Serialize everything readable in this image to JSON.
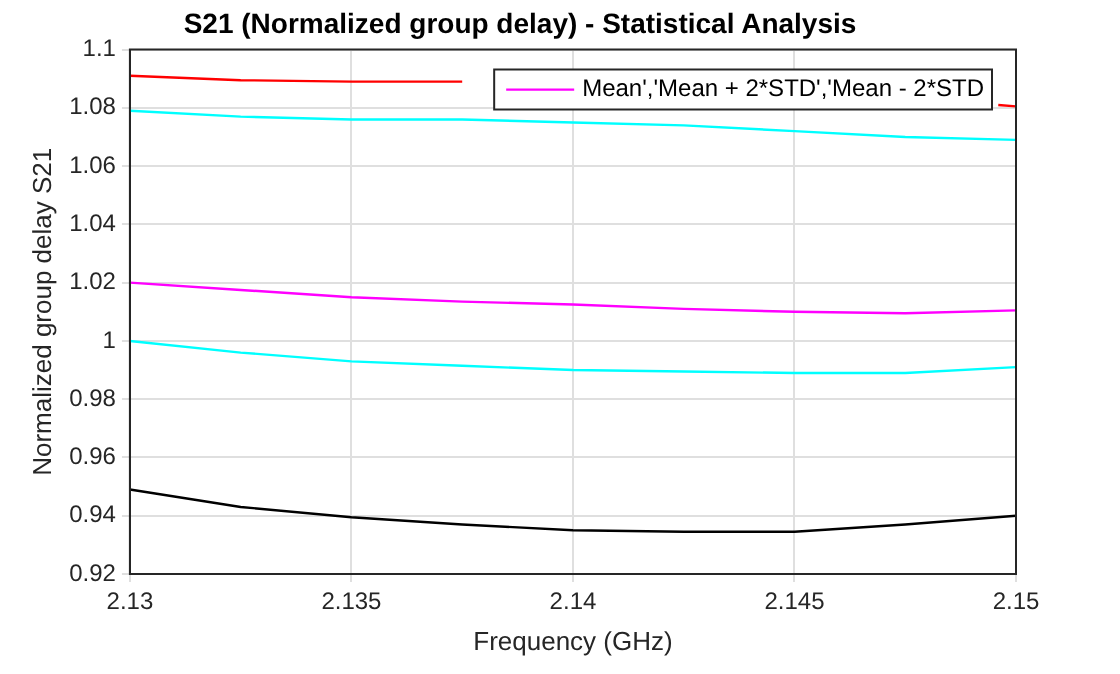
{
  "chart_data": {
    "type": "line",
    "title": "S21 (Normalized group delay) - Statistical Analysis",
    "xlabel": "Frequency (GHz)",
    "ylabel": "Normalized group delay S21",
    "x": [
      2.13,
      2.1325,
      2.135,
      2.1375,
      2.14,
      2.1425,
      2.145,
      2.1475,
      2.15
    ],
    "series": [
      {
        "color": "#ff0000",
        "x": [
          2.13,
          2.1325,
          2.135,
          2.1375,
          2.142,
          2.1496,
          2.15
        ],
        "values": [
          1.091,
          1.0895,
          1.089,
          1.089,
          null,
          1.081,
          1.0805
        ]
      },
      {
        "color": "#00ffff",
        "values": [
          1.079,
          1.077,
          1.076,
          1.076,
          1.075,
          1.074,
          1.072,
          1.07,
          1.069
        ]
      },
      {
        "name": "Mean','Mean + 2*STD','Mean - 2*STD",
        "color": "#ff00ff",
        "values": [
          1.02,
          1.0175,
          1.015,
          1.0135,
          1.0125,
          1.011,
          1.01,
          1.0095,
          1.0105
        ]
      },
      {
        "color": "#00ffff",
        "values": [
          1.0,
          0.996,
          0.993,
          0.9915,
          0.99,
          0.9895,
          0.989,
          0.989,
          0.991
        ]
      },
      {
        "color": "#000000",
        "values": [
          0.949,
          0.943,
          0.9395,
          0.937,
          0.935,
          0.9345,
          0.9345,
          0.937,
          0.94
        ]
      }
    ],
    "xlim": [
      2.13,
      2.15
    ],
    "xticks": [
      2.13,
      2.135,
      2.14,
      2.145,
      2.15
    ],
    "ylim": [
      0.92,
      1.1
    ],
    "yticks": [
      0.92,
      0.94,
      0.96,
      0.98,
      1,
      1.02,
      1.04,
      1.06,
      1.08,
      1.1
    ],
    "grid": true,
    "legend": "top right",
    "marker": "none",
    "line_style": "solid"
  }
}
